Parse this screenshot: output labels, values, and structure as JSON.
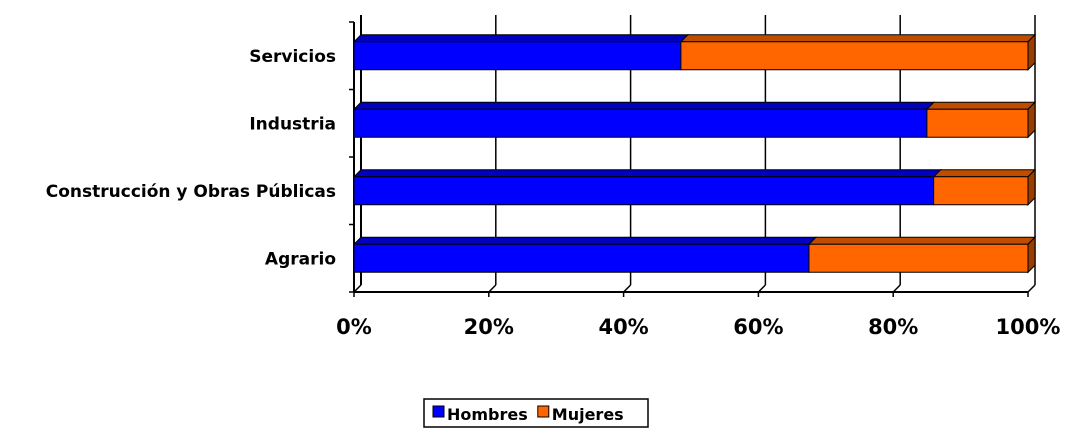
{
  "chart_data": {
    "type": "bar",
    "orientation": "horizontal",
    "stacked": "percent",
    "categories": [
      "Servicios",
      "Industria",
      "Construcción y Obras Públicas",
      "Agrario"
    ],
    "series": [
      {
        "name": "Hombres",
        "color": "#0000FF",
        "values": [
          48.5,
          85,
          86,
          67.5
        ]
      },
      {
        "name": "Mujeres",
        "color": "#FF6600",
        "values": [
          51.5,
          15,
          14,
          32.5
        ]
      }
    ],
    "xticks": [
      "0%",
      "20%",
      "40%",
      "60%",
      "80%",
      "100%"
    ],
    "xlim": [
      0,
      100
    ],
    "grid": true,
    "legend": "bottom-center",
    "title": "",
    "xlabel": "",
    "ylabel": ""
  }
}
